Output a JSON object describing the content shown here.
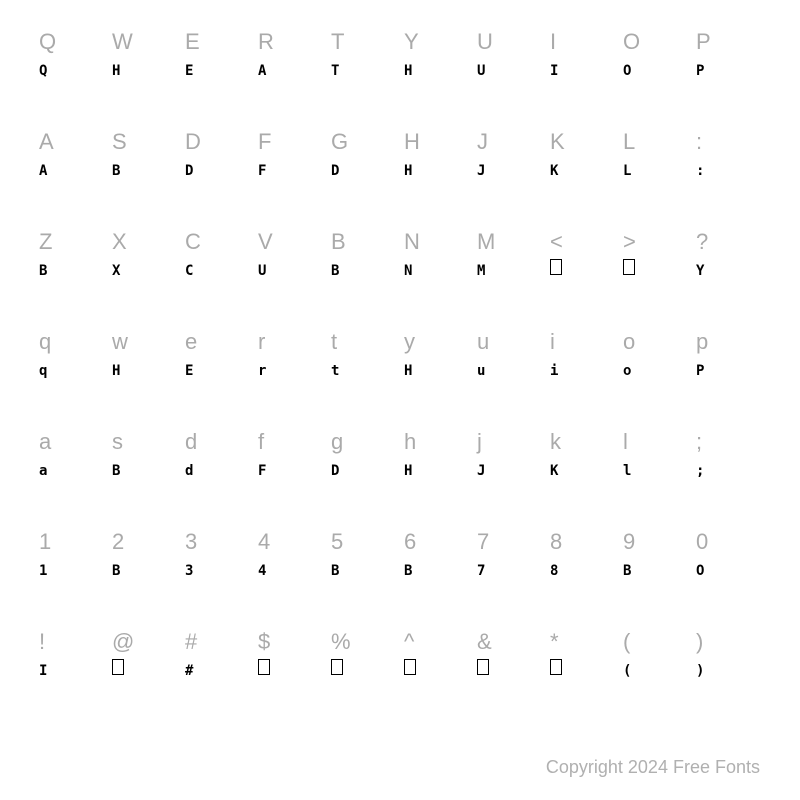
{
  "label_color": "#aaaaaa",
  "glyph_color": "#000000",
  "background_color": "#ffffff",
  "footer_color": "#b0b0b0",
  "label_fontsize": 22,
  "glyph_fontsize": 14,
  "footer_fontsize": 18,
  "rows": [
    {
      "labels": [
        "Q",
        "W",
        "E",
        "R",
        "T",
        "Y",
        "U",
        "I",
        "O",
        "P"
      ],
      "glyphs": [
        "Q",
        "H",
        "E",
        "A",
        "T",
        "H",
        "U",
        "I",
        "O",
        "P"
      ],
      "types": [
        "f",
        "f",
        "f",
        "f",
        "f",
        "f",
        "f",
        "f",
        "f",
        "f"
      ]
    },
    {
      "labels": [
        "A",
        "S",
        "D",
        "F",
        "G",
        "H",
        "J",
        "K",
        "L",
        ":"
      ],
      "glyphs": [
        "A",
        "B",
        "D",
        "F",
        "D",
        "H",
        "J",
        "K",
        "L",
        ":"
      ],
      "types": [
        "f",
        "f",
        "f",
        "f",
        "f",
        "f",
        "f",
        "f",
        "f",
        "f"
      ]
    },
    {
      "labels": [
        "Z",
        "X",
        "C",
        "V",
        "B",
        "N",
        "M",
        "<",
        ">",
        "?"
      ],
      "glyphs": [
        "B",
        "X",
        "C",
        "U",
        "B",
        "N",
        "M",
        "",
        "",
        "Y"
      ],
      "types": [
        "f",
        "f",
        "f",
        "f",
        "f",
        "f",
        "f",
        "b",
        "b",
        "f"
      ]
    },
    {
      "labels": [
        "q",
        "w",
        "e",
        "r",
        "t",
        "y",
        "u",
        "i",
        "o",
        "p"
      ],
      "glyphs": [
        "q",
        "H",
        "E",
        "r",
        "t",
        "H",
        "u",
        "i",
        "o",
        "P"
      ],
      "types": [
        "f",
        "f",
        "f",
        "f",
        "f",
        "f",
        "f",
        "f",
        "f",
        "f"
      ]
    },
    {
      "labels": [
        "a",
        "s",
        "d",
        "f",
        "g",
        "h",
        "j",
        "k",
        "l",
        ";"
      ],
      "glyphs": [
        "a",
        "B",
        "d",
        "F",
        "D",
        "H",
        "J",
        "K",
        "l",
        ";"
      ],
      "types": [
        "f",
        "f",
        "f",
        "f",
        "f",
        "f",
        "f",
        "f",
        "f",
        "f"
      ]
    },
    {
      "labels": [
        "1",
        "2",
        "3",
        "4",
        "5",
        "6",
        "7",
        "8",
        "9",
        "0"
      ],
      "glyphs": [
        "1",
        "B",
        "3",
        "4",
        "B",
        "B",
        "7",
        "8",
        "B",
        "O"
      ],
      "types": [
        "f",
        "f",
        "f",
        "f",
        "f",
        "f",
        "f",
        "f",
        "f",
        "f"
      ]
    },
    {
      "labels": [
        "!",
        "@",
        "#",
        "$",
        "%",
        "^",
        "&",
        "*",
        "(",
        ")"
      ],
      "glyphs": [
        "I",
        "",
        "#",
        "",
        "",
        "",
        "",
        "",
        "(",
        ")"
      ],
      "types": [
        "f",
        "b",
        "f",
        "b",
        "b",
        "b",
        "b",
        "b",
        "f",
        "f"
      ]
    }
  ],
  "footer": "Copyright 2024 Free Fonts"
}
